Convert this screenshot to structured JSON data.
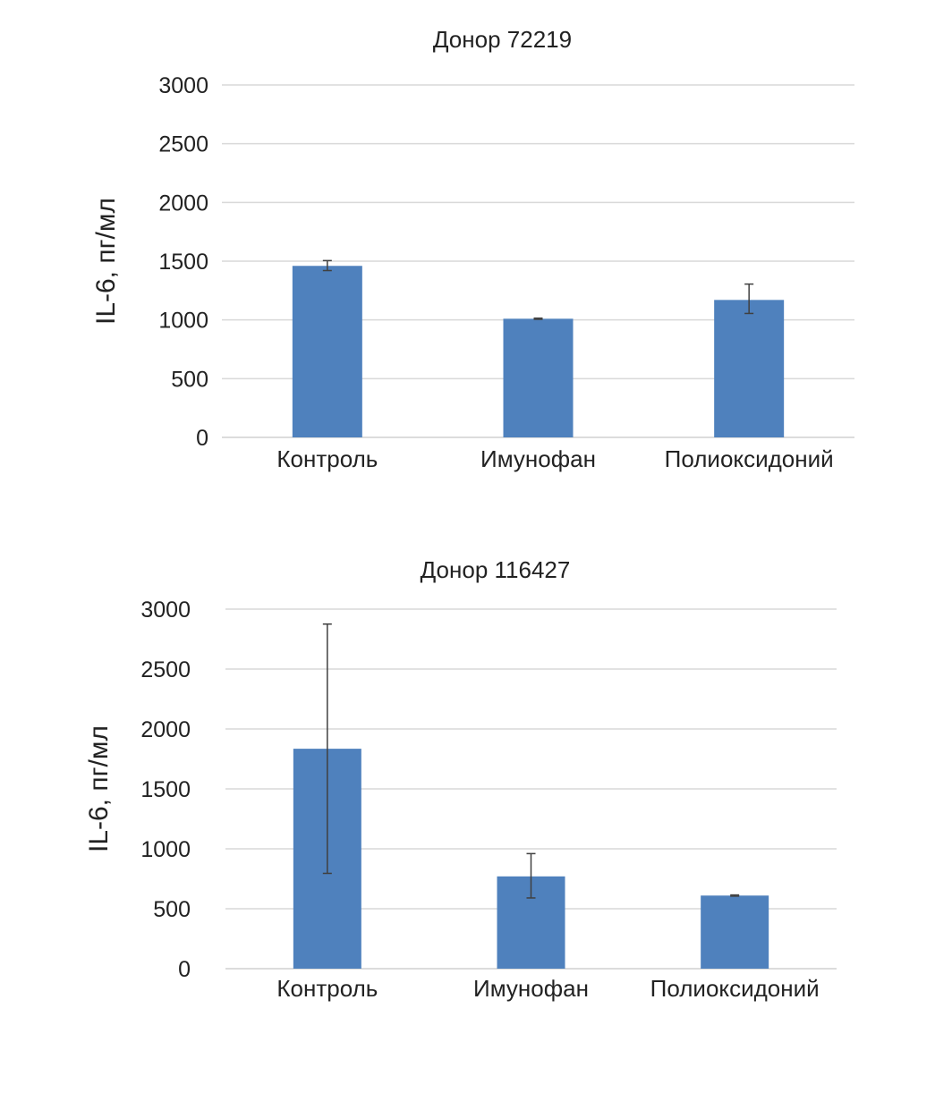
{
  "chart_data": [
    {
      "type": "bar",
      "title": "Донор 72219",
      "ylabel": "IL-6, пг/мл",
      "xlabel": "",
      "ylim": [
        0,
        3000
      ],
      "yticks": [
        "0",
        "500",
        "1000",
        "1500",
        "2000",
        "2500",
        "3000"
      ],
      "categories": [
        "Контроль",
        "Имунофан",
        "Полиоксидоний"
      ],
      "values": [
        1460,
        1010,
        1170
      ],
      "error_low": [
        1420,
        1005,
        1055
      ],
      "error_high": [
        1505,
        1015,
        1305
      ],
      "grid": true,
      "color": "#4f81bd"
    },
    {
      "type": "bar",
      "title": "Донор 116427",
      "ylabel": "IL-6, пг/мл",
      "xlabel": "",
      "ylim": [
        0,
        3000
      ],
      "yticks": [
        "0",
        "500",
        "1000",
        "1500",
        "2000",
        "2500",
        "3000"
      ],
      "categories": [
        "Контроль",
        "Имунофан",
        "Полиоксидоний"
      ],
      "values": [
        1835,
        770,
        610
      ],
      "error_low": [
        795,
        590,
        605
      ],
      "error_high": [
        2875,
        960,
        615
      ],
      "grid": true,
      "color": "#4f81bd"
    }
  ]
}
